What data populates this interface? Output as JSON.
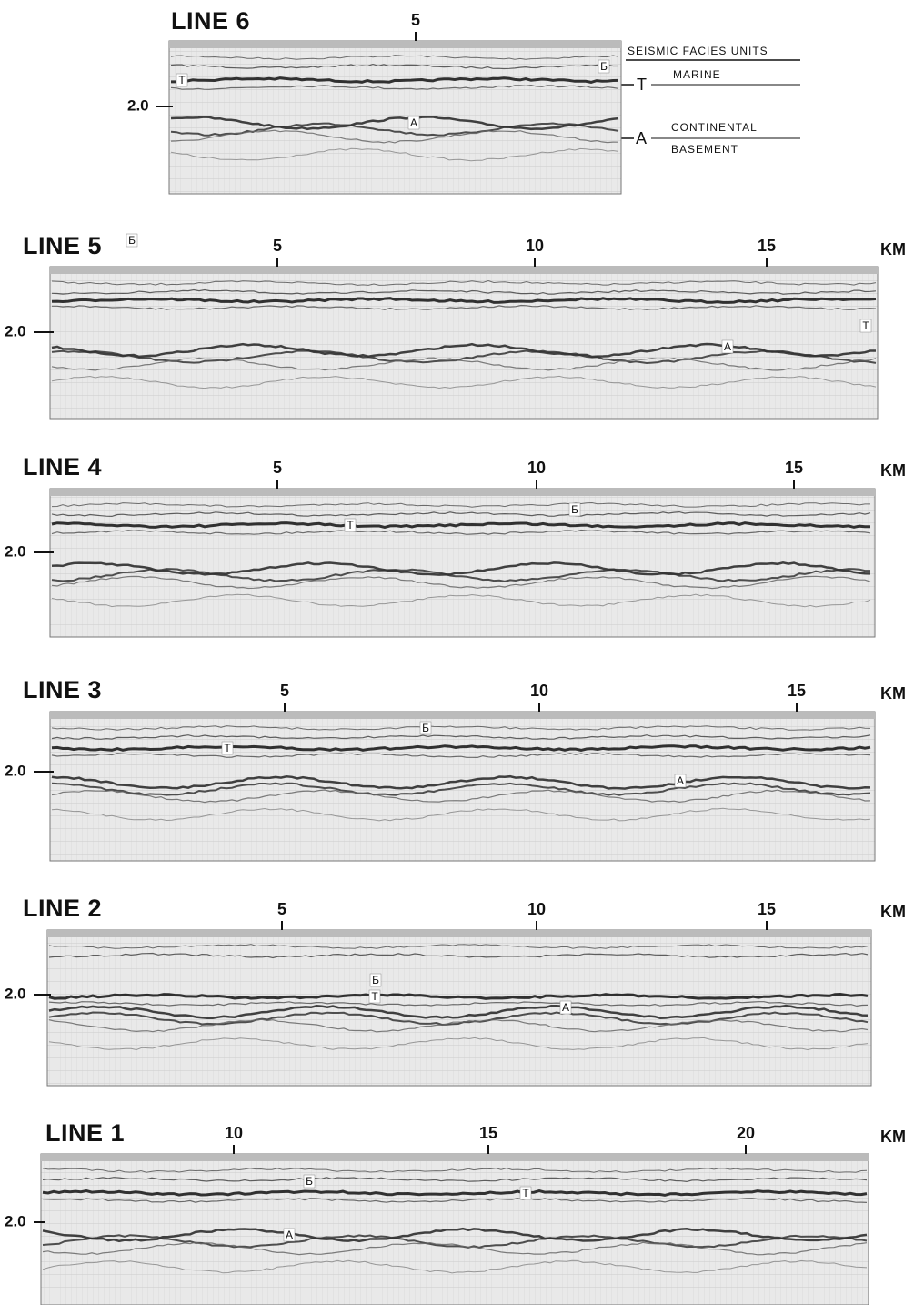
{
  "panels": [
    {
      "title": "LINE 6",
      "km_ticks": [
        "5"
      ],
      "depth_label": "2.0",
      "markers": [
        "T",
        "Б",
        "A"
      ]
    },
    {
      "title": "LINE 5",
      "km_ticks": [
        "5",
        "10",
        "15"
      ],
      "unit": "KM",
      "depth_label": "2.0",
      "markers": [
        "Б",
        "T",
        "A"
      ]
    },
    {
      "title": "LINE 4",
      "km_ticks": [
        "5",
        "10",
        "15"
      ],
      "unit": "KM",
      "depth_label": "2.0",
      "markers": [
        "T",
        "Б"
      ]
    },
    {
      "title": "LINE 3",
      "km_ticks": [
        "5",
        "10",
        "15"
      ],
      "unit": "KM",
      "depth_label": "2.0",
      "markers": [
        "T",
        "Б",
        "A"
      ]
    },
    {
      "title": "LINE 2",
      "km_ticks": [
        "5",
        "10",
        "15"
      ],
      "unit": "KM",
      "depth_label": "2.0",
      "markers": [
        "Б",
        "T",
        "A"
      ]
    },
    {
      "title": "LINE 1",
      "km_ticks": [
        "10",
        "15",
        "20"
      ],
      "unit": "KM",
      "depth_label": "2.0",
      "markers": [
        "Б",
        "T",
        "A"
      ]
    }
  ],
  "legend": {
    "title": "SEISMIC FACIES UNITS",
    "units": [
      {
        "symbol": "T",
        "label": "MARINE"
      },
      {
        "symbol": "A",
        "label": "CONTINENTAL"
      }
    ],
    "basement": "BASEMENT"
  }
}
